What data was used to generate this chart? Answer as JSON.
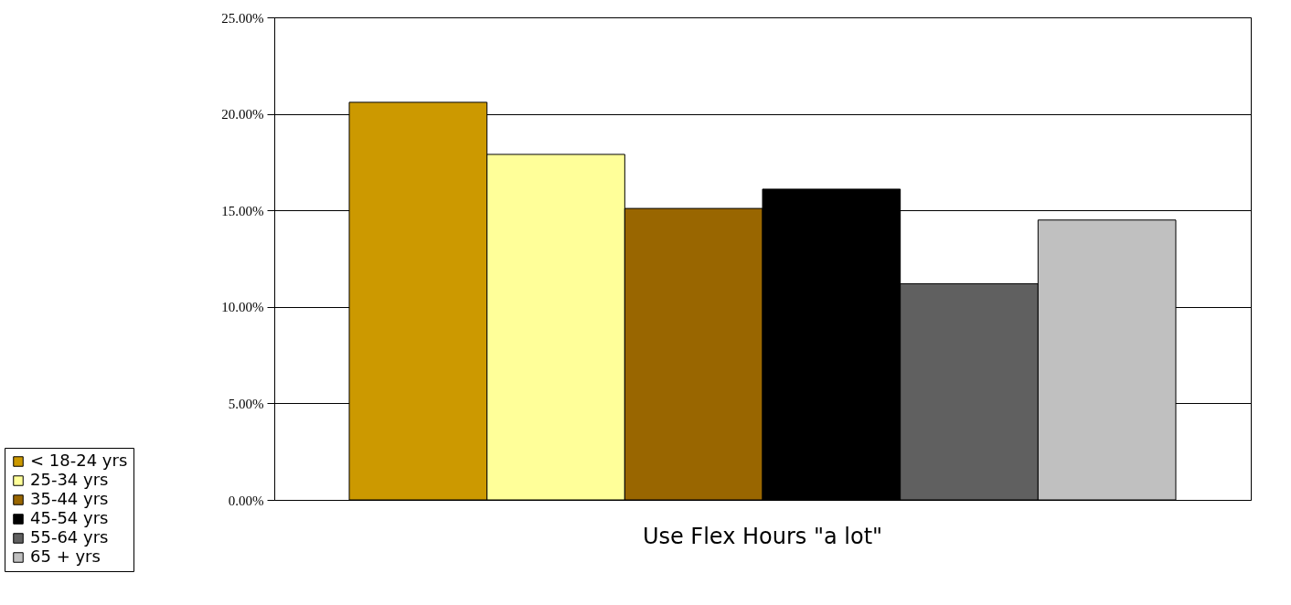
{
  "chart_data": {
    "type": "bar",
    "categories": [
      "Use Flex Hours \"a lot\""
    ],
    "series": [
      {
        "name": "< 18-24 yrs",
        "color": "#cc9900",
        "values": [
          20.6
        ]
      },
      {
        "name": "25-34 yrs",
        "color": "#ffff99",
        "values": [
          17.9
        ]
      },
      {
        "name": "35-44 yrs",
        "color": "#996600",
        "values": [
          15.1
        ]
      },
      {
        "name": "45-54 yrs",
        "color": "#000000",
        "values": [
          16.1
        ]
      },
      {
        "name": "55-64 yrs",
        "color": "#606060",
        "values": [
          11.2
        ]
      },
      {
        "name": "65 + yrs",
        "color": "#c0c0c0",
        "values": [
          14.5
        ]
      }
    ],
    "ylim": [
      0,
      25
    ],
    "yticks": [
      {
        "value": 0,
        "label": "0.00%"
      },
      {
        "value": 5,
        "label": "5.00%"
      },
      {
        "value": 10,
        "label": "10.00%"
      },
      {
        "value": 15,
        "label": "15.00%"
      },
      {
        "value": 20,
        "label": "20.00%"
      },
      {
        "value": 25,
        "label": "25.00%"
      }
    ],
    "grid": "y",
    "legend": "bottom left"
  }
}
